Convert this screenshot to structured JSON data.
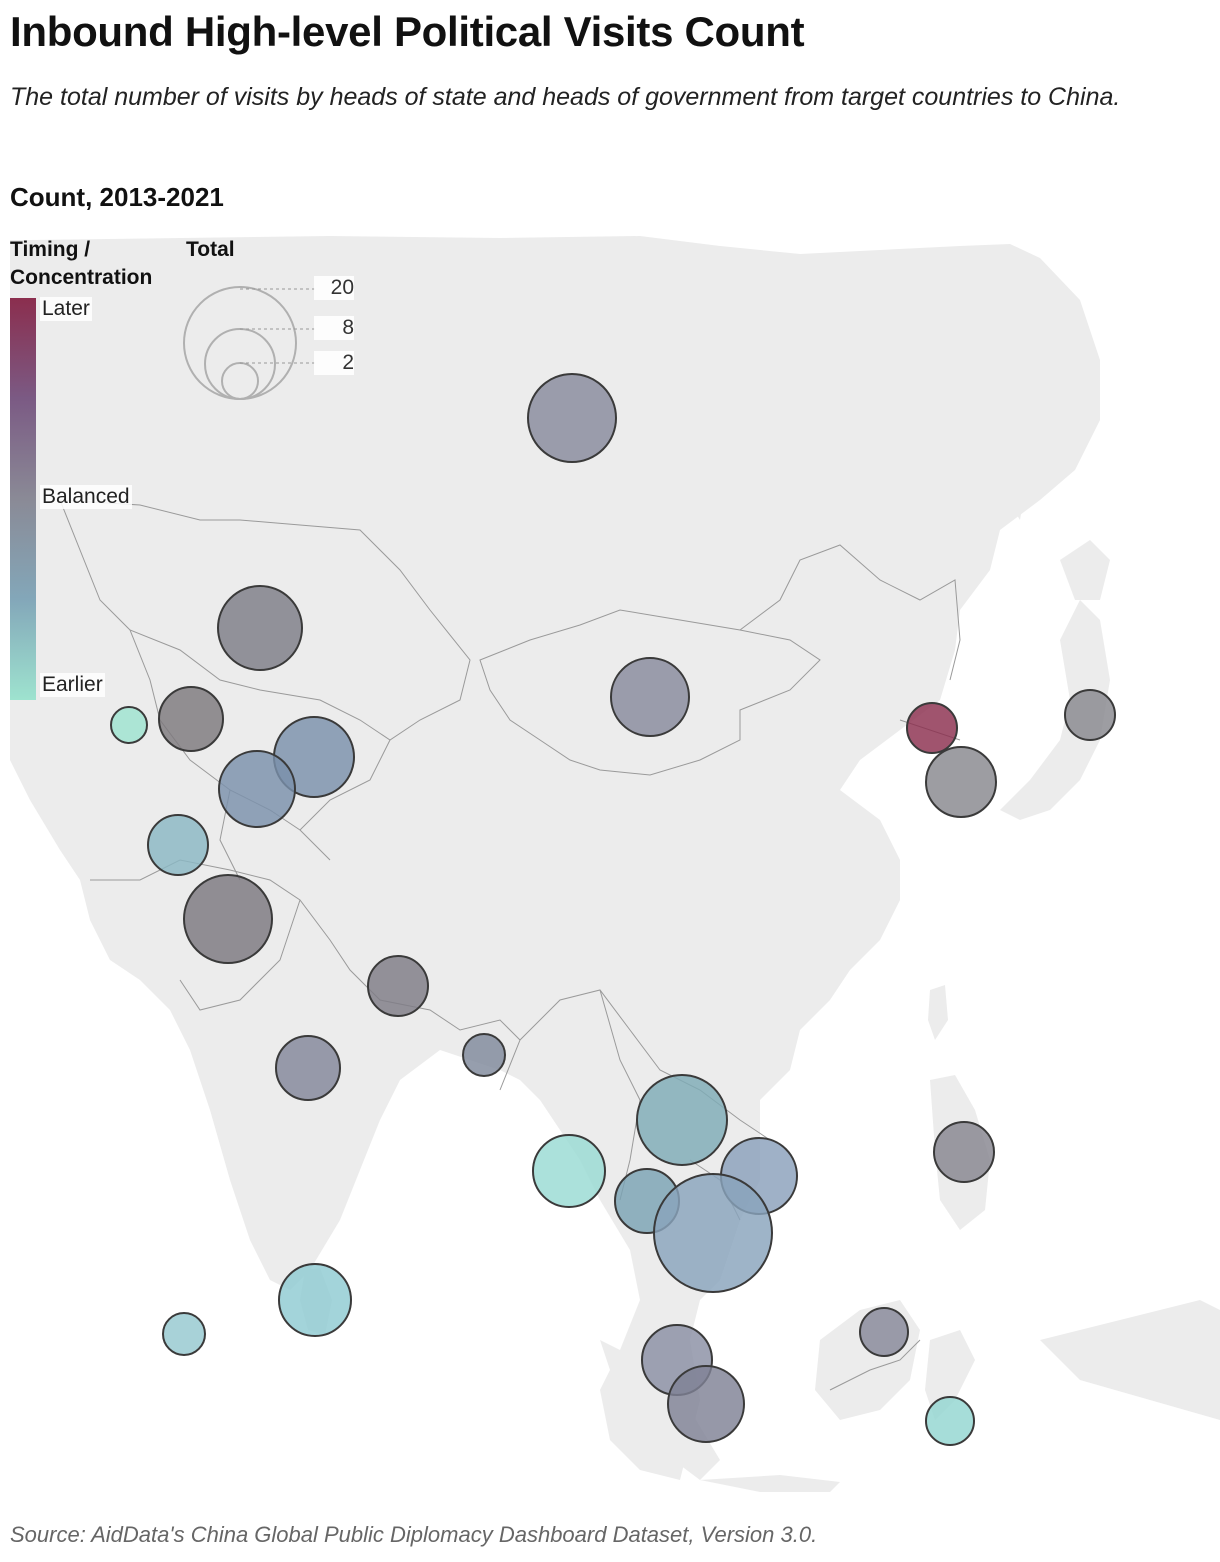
{
  "title": "Inbound High-level Political Visits Count",
  "subtitle": "The total number of visits by heads of state and heads of government from target countries to China.",
  "count_label": "Count, 2013-2021",
  "legend": {
    "color_title_line1": "Timing /",
    "color_title_line2": "Concentration",
    "color_stops": [
      "Later",
      "Balanced",
      "Earlier"
    ],
    "gradient_colors": [
      "#8b2e4e",
      "#7b5a84",
      "#8a8a96",
      "#83a7b9",
      "#9ee3cf"
    ],
    "size_title": "Total",
    "size_values": [
      "20",
      "8",
      "2"
    ]
  },
  "source": "Source: AidData's China Global Public Diplomacy Dashboard Dataset, Version 3.0.",
  "colors": {
    "land": "#ececec",
    "border": "#9a9a9a",
    "later": "#8b2e4e",
    "balanced": "#8a8a96",
    "earlier": "#9ee3cf"
  }
}
